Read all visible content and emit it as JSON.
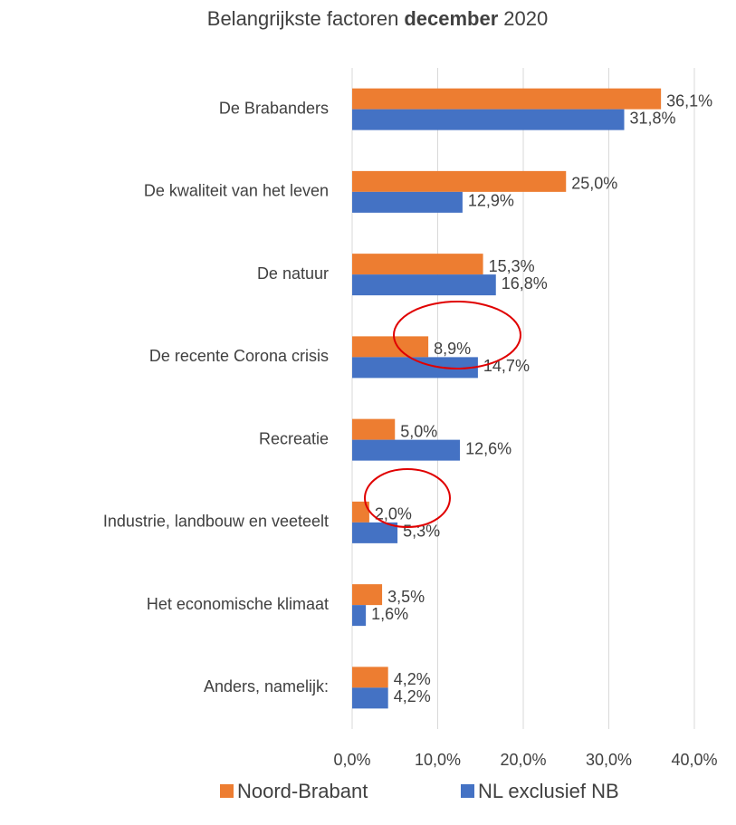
{
  "chart_data": {
    "type": "bar",
    "orientation": "horizontal",
    "title": [
      "Belangrijkste factoren",
      "december",
      "2020"
    ],
    "categories": [
      "De Brabanders",
      "De kwaliteit van het leven",
      "De natuur",
      "De recente Corona crisis",
      "Recreatie",
      "Industrie, landbouw en veeteelt",
      "Het economische klimaat",
      "Anders, namelijk:"
    ],
    "series": [
      {
        "name": "Noord-Brabant",
        "color": "#ED7D31",
        "values": [
          36.1,
          25.0,
          15.3,
          8.9,
          5.0,
          2.0,
          3.5,
          4.2
        ],
        "value_labels": [
          "36,1%",
          "25,0%",
          "15,3%",
          "8,9%",
          "5,0%",
          "2,0%",
          "3,5%",
          "4,2%"
        ]
      },
      {
        "name": "NL exclusief NB",
        "color": "#4472C4",
        "values": [
          31.8,
          12.9,
          16.8,
          14.7,
          12.6,
          5.3,
          1.6,
          4.2
        ],
        "value_labels": [
          "31,8%",
          "12,9%",
          "16,8%",
          "14,7%",
          "12,6%",
          "5,3%",
          "1,6%",
          "4,2%"
        ]
      }
    ],
    "xlim": [
      0,
      40
    ],
    "xticks": [
      {
        "value": 0,
        "label": "0,0%"
      },
      {
        "value": 10,
        "label": "10,0%"
      },
      {
        "value": 20,
        "label": "20,0%"
      },
      {
        "value": 30,
        "label": "30,0%"
      },
      {
        "value": 40,
        "label": "40,0%"
      }
    ],
    "grid": true,
    "legend": "bottom"
  }
}
